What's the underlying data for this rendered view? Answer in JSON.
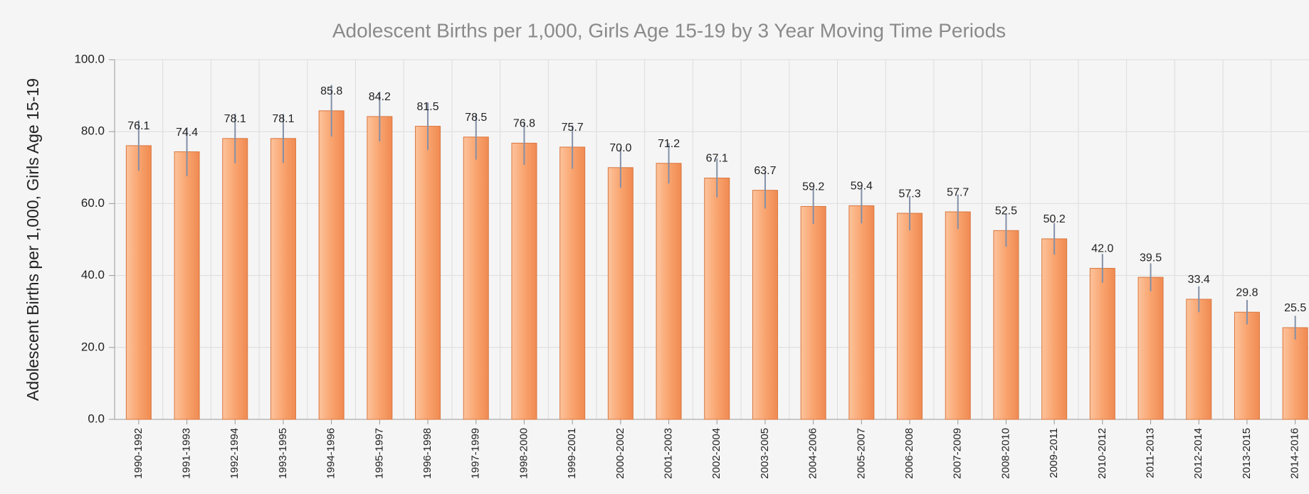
{
  "chart_data": {
    "type": "bar",
    "title": "Adolescent Births per 1,000, Girls Age 15-19 by 3 Year Moving Time Periods",
    "y_label": "Adolescent Births per 1,000, Girls Age 15-19",
    "categories": [
      "1990-1992",
      "1991-1993",
      "1992-1994",
      "1993-1995",
      "1994-1996",
      "1995-1997",
      "1996-1998",
      "1997-1999",
      "1998-2000",
      "1999-2001",
      "2000-2002",
      "2001-2003",
      "2002-2004",
      "2003-2005",
      "2004-2006",
      "2005-2007",
      "2006-2008",
      "2007-2009",
      "2008-2010",
      "2009-2011",
      "2010-2012",
      "2011-2013",
      "2012-2014",
      "2013-2015",
      "2014-2016"
    ],
    "values": [
      76.1,
      74.4,
      78.1,
      78.1,
      85.8,
      84.2,
      81.5,
      78.5,
      76.8,
      75.7,
      70.0,
      71.2,
      67.1,
      63.7,
      59.2,
      59.4,
      57.3,
      57.7,
      52.5,
      50.2,
      42.0,
      39.5,
      33.4,
      29.8,
      25.5
    ],
    "value_labels": [
      "76.1",
      "74.4",
      "78.1",
      "78.1",
      "85.8",
      "84.2",
      "81.5",
      "78.5",
      "76.8",
      "75.7",
      "70.0",
      "71.2",
      "67.1",
      "63.7",
      "59.2",
      "59.4",
      "57.3",
      "57.7",
      "52.5",
      "50.2",
      "42.0",
      "39.5",
      "33.4",
      "29.8",
      "25.5"
    ],
    "errors": [
      7.0,
      6.8,
      6.9,
      6.8,
      7.2,
      6.9,
      6.6,
      6.3,
      6.0,
      6.0,
      5.6,
      5.6,
      5.4,
      5.1,
      4.9,
      4.9,
      4.8,
      4.8,
      4.5,
      4.4,
      4.0,
      3.9,
      3.6,
      3.4,
      3.3
    ],
    "color": "#f9a46f",
    "error_color": "#8390a8",
    "ylim": [
      0,
      100
    ],
    "yticks": [
      {
        "value": 0,
        "label": "0.0"
      },
      {
        "value": 20,
        "label": "20.0"
      },
      {
        "value": 40,
        "label": "40.0"
      },
      {
        "value": 60,
        "label": "60.0"
      },
      {
        "value": 80,
        "label": "80.0"
      },
      {
        "value": 100,
        "label": "100.0"
      }
    ],
    "grid": true
  }
}
